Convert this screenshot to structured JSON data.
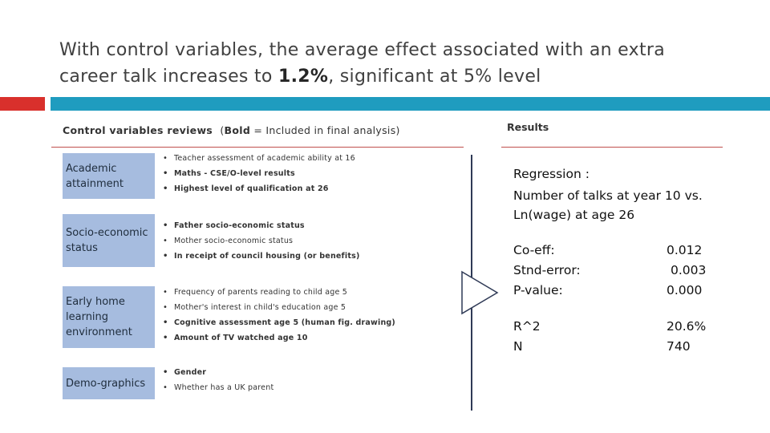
{
  "slide": {
    "title_pre": "With control variables, the average effect associated with an extra career talk increases to ",
    "title_bold": "1.2%",
    "title_post": ", significant at 5% level"
  },
  "accents": {
    "red": "#d9302c",
    "teal": "#1f9cbf",
    "box": "#a6bcdf",
    "rule": "#c0504d"
  },
  "left_section": {
    "heading": "Control variables reviews",
    "note_pre": "(",
    "note_bold": "Bold",
    "note_post": " = Included in final analysis)"
  },
  "right_section": {
    "heading": "Results"
  },
  "categories": [
    {
      "label": "Academic attainment",
      "items": [
        {
          "text": "Teacher assessment of academic ability at 16",
          "bold": false
        },
        {
          "text": "Maths - CSE/O-level results",
          "bold": true
        },
        {
          "text": "Highest level of qualification at 26",
          "bold": true
        }
      ]
    },
    {
      "label": "Socio-economic status",
      "items": [
        {
          "text": "Father socio-economic status",
          "bold": true
        },
        {
          "text": "Mother socio-economic status",
          "bold": false
        },
        {
          "text": "In receipt of council housing (or benefits)",
          "bold": true
        }
      ]
    },
    {
      "label": "Early home learning environment",
      "items": [
        {
          "text": "Frequency of parents reading to child age 5",
          "bold": false
        },
        {
          "text": "Mother's interest in child's education age 5",
          "bold": false
        },
        {
          "text": "Cognitive assessment age 5 (human fig. drawing)",
          "bold": true
        },
        {
          "text": "Amount of TV watched age 10",
          "bold": true
        }
      ]
    },
    {
      "label": "Demo-graphics",
      "items": [
        {
          "text": "Gender",
          "bold": true
        },
        {
          "text": "Whether has a UK parent",
          "bold": false
        }
      ]
    }
  ],
  "results": {
    "regression_label": "Regression :",
    "regression_desc": "Number of talks at year 10 vs. Ln(wage) at age 26",
    "stats": [
      {
        "key": "Co-eff:",
        "value": "0.012"
      },
      {
        "key": "Stnd-error:",
        "value": "0.003"
      },
      {
        "key": "P-value:",
        "value": "0.000"
      }
    ],
    "fit": [
      {
        "key": "R^2",
        "value": "20.6%"
      },
      {
        "key": "N",
        "value": "740"
      }
    ]
  }
}
